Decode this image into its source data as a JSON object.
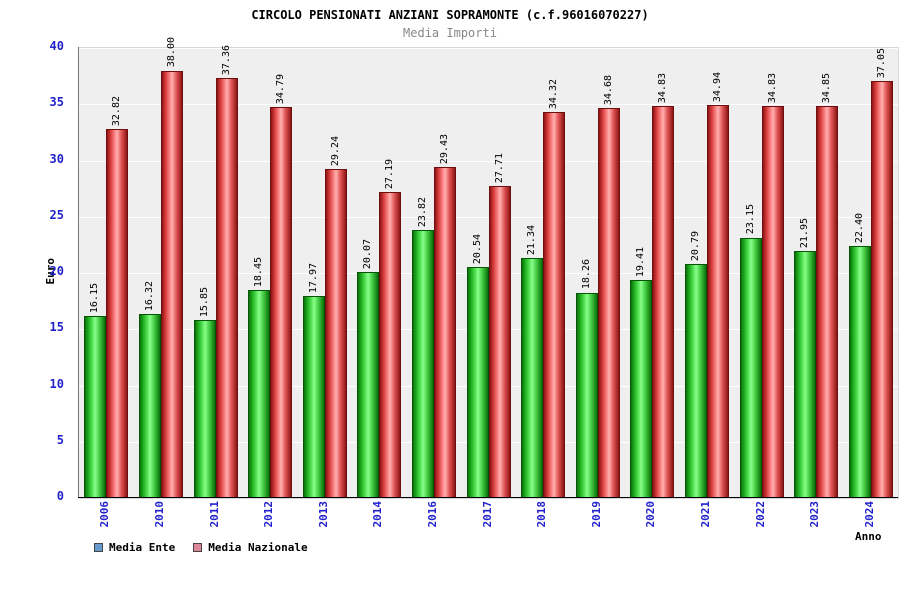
{
  "header": {
    "title": "CIRCOLO PENSIONATI ANZIANI SOPRAMONTE (c.f.96016070227)",
    "subtitle": "Media Importi"
  },
  "chart_data": {
    "type": "bar",
    "title": "CIRCOLO PENSIONATI ANZIANI SOPRAMONTE (c.f.96016070227)",
    "subtitle": "Media Importi",
    "xlabel": "Anno",
    "ylabel": "Euro",
    "ylim": [
      0,
      40
    ],
    "yticks": [
      0,
      5,
      10,
      15,
      20,
      25,
      30,
      35,
      40
    ],
    "grid": true,
    "legend_position": "bottom-left",
    "categories": [
      "2006",
      "2010",
      "2011",
      "2012",
      "2013",
      "2014",
      "2016",
      "2017",
      "2018",
      "2019",
      "2020",
      "2021",
      "2022",
      "2023",
      "2024"
    ],
    "series": [
      {
        "name": "Media Ente",
        "bar_color": "#33cc33",
        "values": [
          "16.15",
          "16.32",
          "15.85",
          "18.45",
          "17.97",
          "20.07",
          "23.82",
          "20.54",
          "21.34",
          "18.26",
          "19.41",
          "20.79",
          "23.15",
          "21.95",
          "22.40"
        ]
      },
      {
        "name": "Media Nazionale",
        "bar_color": "#ee4444",
        "values": [
          "32.82",
          "38.00",
          "37.36",
          "34.79",
          "29.24",
          "27.19",
          "29.43",
          "27.71",
          "34.32",
          "34.68",
          "34.83",
          "34.94",
          "34.83",
          "34.85",
          "37.05"
        ]
      }
    ],
    "legend": [
      {
        "label": "Media Ente",
        "swatch_color": "#6699cc"
      },
      {
        "label": "Media Nazionale",
        "swatch_color": "#dd8899"
      }
    ]
  },
  "colors": {
    "axis_text": "#2222cc",
    "plot_background": "#efefef",
    "gridline": "#ffffff",
    "title_text": "#000000",
    "subtitle_text": "#888888"
  }
}
